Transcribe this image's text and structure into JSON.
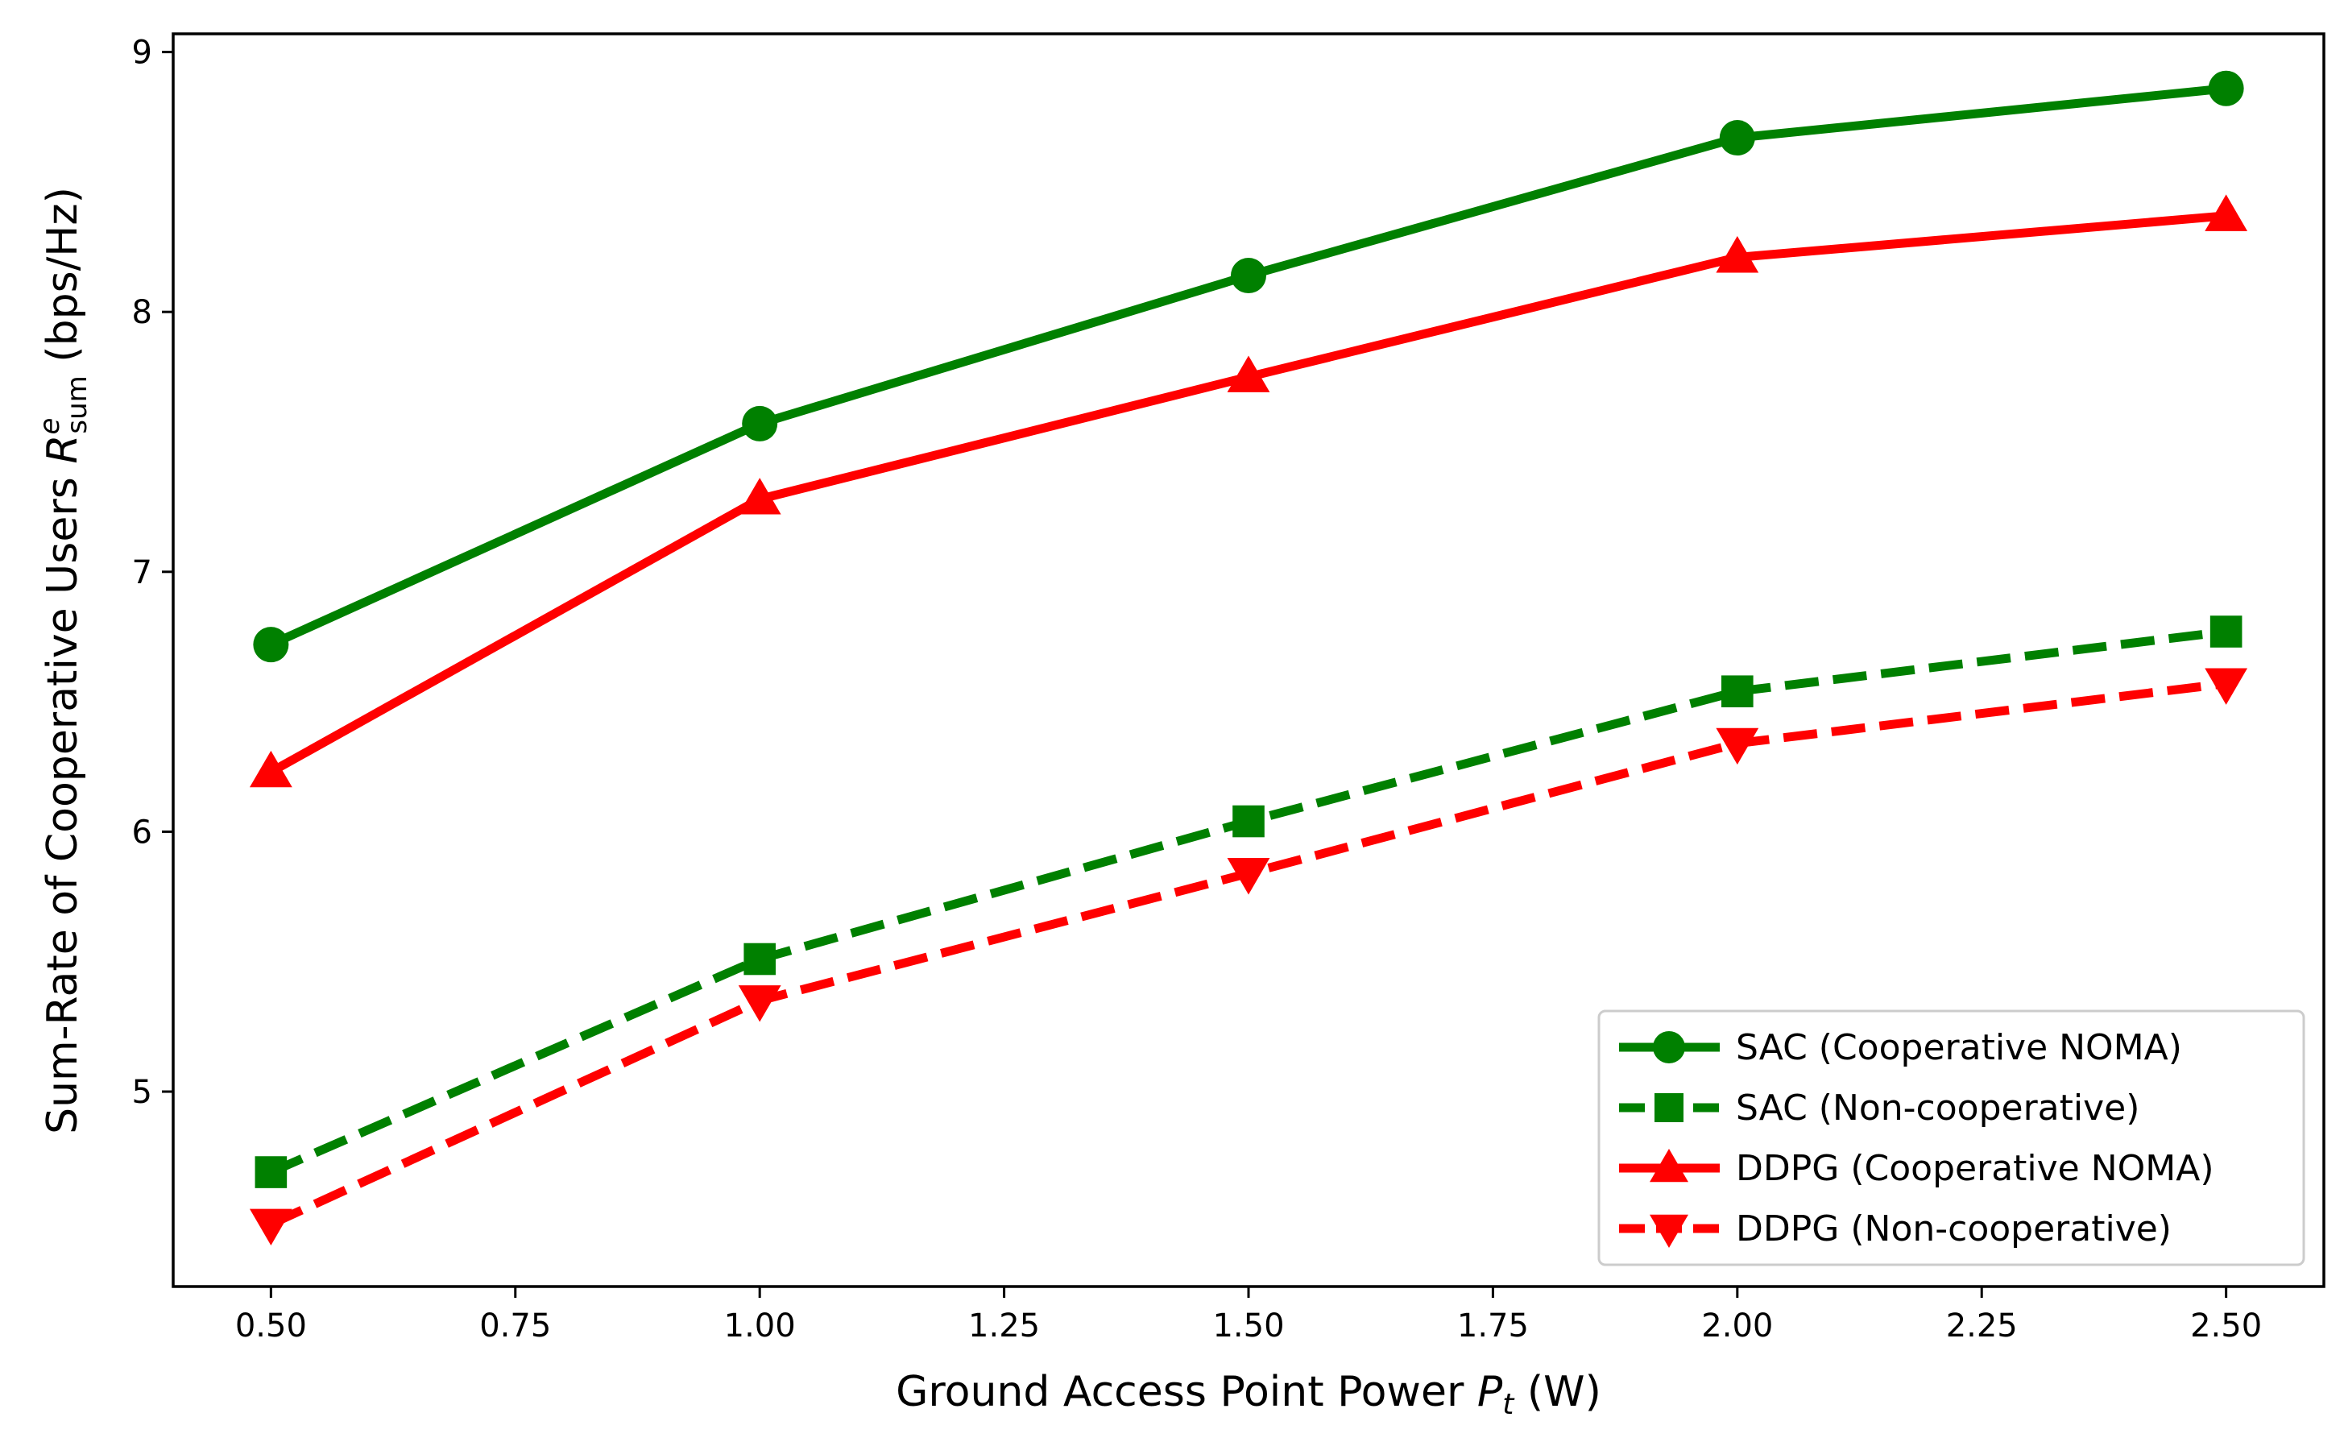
{
  "chart_data": {
    "type": "line",
    "title": "",
    "xlabel": {
      "prefix": "Ground Access Point Power ",
      "symbol": "P",
      "subscript": "t",
      "unit": " (W)"
    },
    "ylabel": {
      "prefix": "Sum-Rate of Cooperative Users ",
      "symbol": "R",
      "superscript": "e",
      "subscript": "sum",
      "unit": " (bps/Hz)"
    },
    "x": [
      0.5,
      1.0,
      1.5,
      2.0,
      2.5
    ],
    "xlim": [
      0.4,
      2.6
    ],
    "ylim": [
      4.25,
      9.07
    ],
    "xticks": [
      0.5,
      0.75,
      1.0,
      1.25,
      1.5,
      1.75,
      2.0,
      2.25,
      2.5
    ],
    "xtick_labels": [
      "0.50",
      "0.75",
      "1.00",
      "1.25",
      "1.50",
      "1.75",
      "2.00",
      "2.25",
      "2.50"
    ],
    "yticks": [
      5,
      6,
      7,
      8,
      9
    ],
    "ytick_labels": [
      "5",
      "6",
      "7",
      "8",
      "9"
    ],
    "grid": false,
    "legend_position": "bottom-right",
    "series": [
      {
        "name": "SAC (Cooperative NOMA)",
        "color": "#008000",
        "linestyle": "solid",
        "marker": "circle",
        "values": [
          6.72,
          7.57,
          8.14,
          8.67,
          8.86
        ]
      },
      {
        "name": "SAC (Non-cooperative)",
        "color": "#008000",
        "linestyle": "dashed",
        "marker": "square",
        "values": [
          4.69,
          5.51,
          6.04,
          6.54,
          6.77
        ]
      },
      {
        "name": "DDPG (Cooperative NOMA)",
        "color": "#ff0000",
        "linestyle": "solid",
        "marker": "triangle-up",
        "values": [
          6.23,
          7.28,
          7.75,
          8.21,
          8.37
        ]
      },
      {
        "name": "DDPG (Non-cooperative)",
        "color": "#ff0000",
        "linestyle": "dashed",
        "marker": "triangle-down",
        "values": [
          4.49,
          5.35,
          5.84,
          6.34,
          6.57
        ]
      }
    ]
  }
}
